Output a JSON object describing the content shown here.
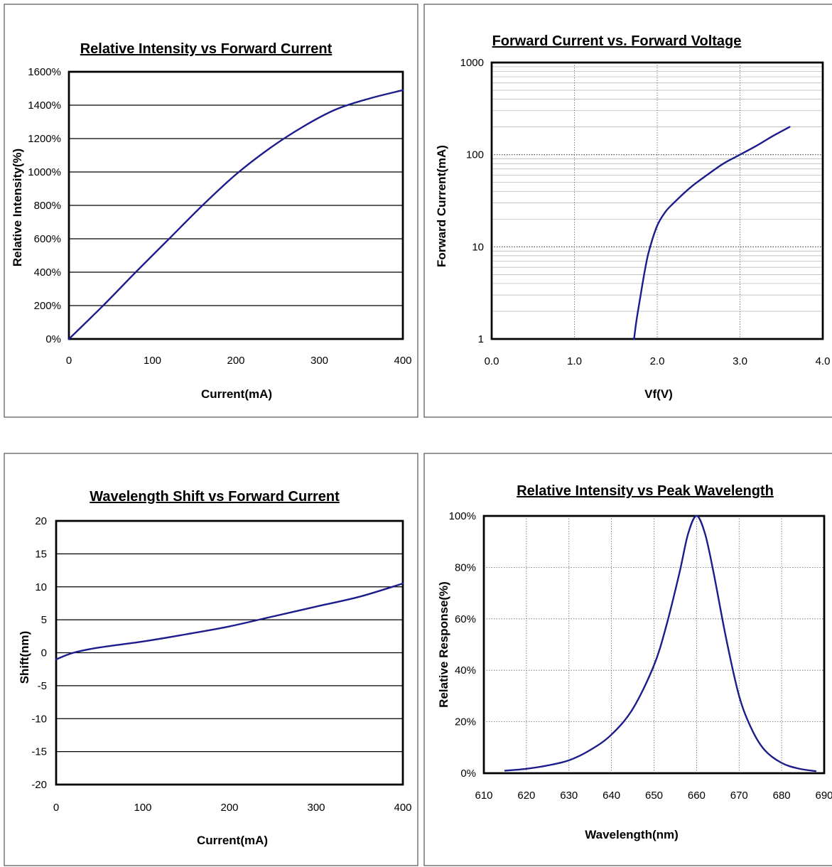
{
  "chart_data": [
    {
      "type": "line",
      "title": "Relative Intensity vs Forward Current",
      "xlabel": "Current(mA)",
      "ylabel": "Relative Intensity(%)",
      "xlim": [
        0,
        400
      ],
      "ylim": [
        0,
        1600
      ],
      "x_ticks": [
        "0",
        "100",
        "200",
        "300",
        "400"
      ],
      "y_ticks": [
        "0%",
        "200%",
        "400%",
        "600%",
        "800%",
        "1000%",
        "1200%",
        "1400%",
        "1600%"
      ],
      "grid": "horizontal",
      "color": "#1c1c8c",
      "series": [
        {
          "x": [
            0,
            40,
            80,
            120,
            160,
            200,
            240,
            280,
            320,
            360,
            400
          ],
          "y": [
            0,
            195,
            400,
            600,
            800,
            985,
            1140,
            1270,
            1375,
            1440,
            1490
          ]
        }
      ]
    },
    {
      "type": "line",
      "title": "Forward Current vs. Forward Voltage",
      "xlabel": "Vf(V)",
      "ylabel": "Forward Current(mA)",
      "xlim": [
        0,
        4
      ],
      "ylim": [
        1,
        1000
      ],
      "y_scale": "log",
      "x_ticks": [
        "0.0",
        "1.0",
        "2.0",
        "3.0",
        "4.0"
      ],
      "y_ticks": [
        "1",
        "10",
        "100",
        "1000"
      ],
      "grid": "both",
      "color": "#1c1c8c",
      "series": [
        {
          "x": [
            1.72,
            1.75,
            1.8,
            1.85,
            1.9,
            2.0,
            2.1,
            2.2,
            2.4,
            2.6,
            2.8,
            3.0,
            3.2,
            3.4,
            3.6
          ],
          "y": [
            1,
            1.6,
            3,
            5.5,
            9,
            17,
            24,
            30,
            44,
            60,
            80,
            100,
            125,
            160,
            200
          ]
        }
      ]
    },
    {
      "type": "line",
      "title": "Wavelength Shift vs Forward Current",
      "xlabel": "Current(mA)",
      "ylabel": "Shift(nm)",
      "xlim": [
        0,
        400
      ],
      "ylim": [
        -20,
        20
      ],
      "x_ticks": [
        "0",
        "100",
        "200",
        "300",
        "400"
      ],
      "y_ticks": [
        "20",
        "15",
        "10",
        "5",
        "0",
        "-5",
        "-10",
        "-15",
        "-20"
      ],
      "grid": "horizontal",
      "color": "#1c1c8c",
      "series": [
        {
          "x": [
            0,
            20,
            50,
            100,
            150,
            200,
            250,
            300,
            350,
            400
          ],
          "y": [
            -1,
            0,
            0.8,
            1.7,
            2.8,
            4.0,
            5.5,
            7.0,
            8.5,
            10.5
          ]
        }
      ]
    },
    {
      "type": "line",
      "title": "Relative Intensity vs Peak Wavelength",
      "xlabel": "Wavelength(nm)",
      "ylabel": "Relative Response(%)",
      "xlim": [
        610,
        690
      ],
      "ylim": [
        0,
        100
      ],
      "x_ticks": [
        "610",
        "620",
        "630",
        "640",
        "650",
        "660",
        "670",
        "680",
        "690"
      ],
      "y_ticks": [
        "0%",
        "20%",
        "40%",
        "60%",
        "80%",
        "100%"
      ],
      "grid": "both-dotted",
      "color": "#1c1c8c",
      "series": [
        {
          "x": [
            615,
            620,
            625,
            630,
            635,
            640,
            645,
            650,
            653,
            656,
            658,
            660,
            662,
            664,
            667,
            670,
            673,
            676,
            680,
            684,
            688
          ],
          "y": [
            1,
            1.7,
            3,
            5,
            9,
            15,
            25,
            42,
            58,
            78,
            93,
            100,
            93,
            78,
            52,
            30,
            17,
            9,
            4,
            1.8,
            0.8
          ]
        }
      ]
    }
  ]
}
